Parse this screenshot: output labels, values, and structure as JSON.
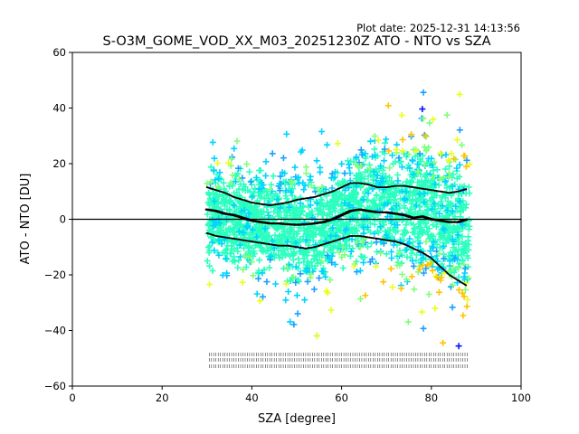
{
  "plot_date": "Plot date: 2025-12-31 14:13:56",
  "chart_data": {
    "type": "scatter",
    "title": "S-O3M_GOME_VOD_XX_M03_20251230Z ATO - NTO vs SZA",
    "xlabel": "SZA [degree]",
    "ylabel": "ATO - NTO [DU]",
    "xlim": [
      0,
      100
    ],
    "ylim": [
      -60,
      60
    ],
    "x_ticks": [
      0,
      20,
      40,
      60,
      80,
      100
    ],
    "y_ticks": [
      -60,
      -40,
      -20,
      0,
      20,
      40,
      60
    ],
    "grid": false,
    "legend": "none",
    "reference_line_y": 0,
    "colors": {
      "main": "#2bffbf",
      "cyan": "#00d4ff",
      "blue_mid": "#1aa0ff",
      "blue_dark": "#0a14ff",
      "green_light": "#7fff7a",
      "yellow": "#e8ff1a",
      "orange": "#ffc300",
      "stat_line": "#000000"
    },
    "series": [
      {
        "x": [
          30,
          32,
          34,
          36,
          38,
          40,
          42,
          44,
          46,
          48,
          50,
          52,
          54,
          56,
          58,
          60,
          62,
          64,
          66,
          68,
          70,
          72,
          74,
          76,
          78,
          80,
          82,
          84,
          86,
          88
        ],
        "values": [
          3.5,
          3,
          2,
          1.5,
          0.5,
          -0.5,
          -1,
          -1.5,
          -1.5,
          -1.8,
          -2,
          -1.8,
          -1.5,
          -1,
          0,
          1.5,
          3,
          3.5,
          3,
          2.5,
          2.5,
          2,
          1.5,
          0.5,
          1,
          0,
          -0.5,
          -1,
          -1,
          0
        ]
      },
      {
        "x": [
          30,
          32,
          34,
          36,
          38,
          40,
          42,
          44,
          46,
          48,
          50,
          52,
          54,
          56,
          58,
          60,
          62,
          64,
          66,
          68,
          70,
          72,
          74,
          76,
          78,
          80,
          82,
          84,
          86,
          88
        ],
        "values": [
          11.5,
          10.5,
          9.5,
          8,
          7,
          6,
          5.5,
          5,
          5.5,
          6,
          7,
          7.5,
          8,
          9,
          10,
          11.5,
          13,
          13,
          12.5,
          11.5,
          11.5,
          12,
          12,
          11.5,
          11,
          10.5,
          10,
          9.5,
          10,
          11
        ]
      },
      {
        "x": [
          30,
          32,
          34,
          36,
          38,
          40,
          42,
          44,
          46,
          48,
          50,
          52,
          54,
          56,
          58,
          60,
          62,
          64,
          66,
          68,
          70,
          72,
          74,
          76,
          78,
          80,
          82,
          84,
          86,
          88
        ],
        "values": [
          -5,
          -6,
          -6.5,
          -7,
          -7.5,
          -8,
          -8.5,
          -9,
          -9.5,
          -9.5,
          -10,
          -10.5,
          -10,
          -9,
          -8,
          -7,
          -6,
          -6,
          -6.5,
          -7,
          -7.5,
          -8,
          -9,
          -10.5,
          -12,
          -14,
          -17,
          -20,
          -22,
          -24
        ]
      }
    ]
  }
}
